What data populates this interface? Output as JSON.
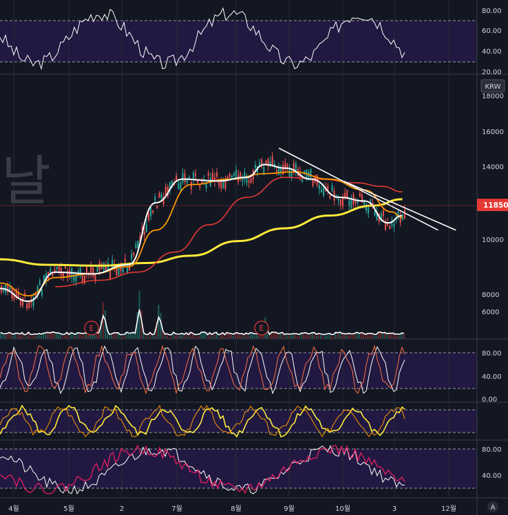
{
  "chart_data": {
    "type": "candlestick",
    "currency_label": "KRW",
    "watermark": "날",
    "last_price_label": "11850",
    "last_price": 11850,
    "x_ticks": [
      "4월",
      "5월",
      "2",
      "7월",
      "8월",
      "9월",
      "10월",
      "3",
      "12월"
    ],
    "main_ticks": [
      "18000",
      "16000",
      "14000",
      "12000",
      "10000",
      "8000",
      "6000"
    ],
    "rsi_ticks": [
      "80.00",
      "60.00",
      "40.00",
      "20.00"
    ],
    "stoch_ticks": [
      "80.00",
      "40.00",
      "0.00"
    ],
    "lower_ticks": [
      "80.00",
      "40.00"
    ],
    "event_marker": "E",
    "auto_scale_button": "A",
    "colors": {
      "background": "#131722",
      "up": "#26a69a",
      "down": "#ef5350",
      "band": "#2a1f4d",
      "ma_short": "#ffffff",
      "ma_mid": "#ff9800",
      "ma_long": "#e53935",
      "ma_xlong": "#ffeb3b",
      "last_price_badge": "#e53935"
    },
    "ma_xlong_points": [
      [
        "2023-03-25",
        8900
      ],
      [
        "2023-04-20",
        8600
      ],
      [
        "2023-05-20",
        8550
      ],
      [
        "2023-06-15",
        8700
      ],
      [
        "2023-07-10",
        9100
      ],
      [
        "2023-08-05",
        9900
      ],
      [
        "2023-08-31",
        10600
      ],
      [
        "2023-09-25",
        11300
      ],
      [
        "2023-10-20",
        11850
      ],
      [
        "2023-11-05",
        12200
      ]
    ],
    "ma_long_points": [
      [
        "2023-04-25",
        7400
      ],
      [
        "2023-05-20",
        7750
      ],
      [
        "2023-06-10",
        8200
      ],
      [
        "2023-07-01",
        9300
      ],
      [
        "2023-07-20",
        10800
      ],
      [
        "2023-08-10",
        12300
      ],
      [
        "2023-08-31",
        13400
      ],
      [
        "2023-09-20",
        13300
      ],
      [
        "2023-10-10",
        13100
      ],
      [
        "2023-10-25",
        12900
      ],
      [
        "2023-11-05",
        12600
      ]
    ],
    "ma_mid_points": [
      [
        "2023-03-25",
        7600
      ],
      [
        "2023-04-10",
        6900
      ],
      [
        "2023-04-25",
        7900
      ],
      [
        "2023-05-15",
        8100
      ],
      [
        "2023-06-05",
        8500
      ],
      [
        "2023-06-20",
        10500
      ],
      [
        "2023-07-10",
        13000
      ],
      [
        "2023-08-01",
        13300
      ],
      [
        "2023-08-20",
        13600
      ],
      [
        "2023-09-05",
        13700
      ],
      [
        "2023-09-25",
        13300
      ],
      [
        "2023-10-15",
        12700
      ],
      [
        "2023-10-30",
        11500
      ],
      [
        "2023-11-05",
        11200
      ]
    ],
    "ma_short_points": [
      [
        "2023-03-25",
        7300
      ],
      [
        "2023-04-10",
        6600
      ],
      [
        "2023-04-25",
        8200
      ],
      [
        "2023-05-15",
        8100
      ],
      [
        "2023-06-05",
        8600
      ],
      [
        "2023-06-20",
        12000
      ],
      [
        "2023-07-05",
        13300
      ],
      [
        "2023-07-25",
        13200
      ],
      [
        "2023-08-10",
        13400
      ],
      [
        "2023-08-20",
        14100
      ],
      [
        "2023-09-01",
        13900
      ],
      [
        "2023-09-15",
        13300
      ],
      [
        "2023-10-01",
        12300
      ],
      [
        "2023-10-15",
        12100
      ],
      [
        "2023-10-28",
        10900
      ],
      [
        "2023-11-05",
        11300
      ]
    ],
    "trendlines": [
      {
        "from": [
          "2023-08-28",
          15000
        ],
        "to": [
          "2023-11-25",
          10500
        ]
      },
      {
        "from": [
          "2023-10-03",
          13200
        ],
        "to": [
          "2023-12-05",
          10500
        ]
      }
    ],
    "volume_spikes": [
      {
        "date": "2023-05-22",
        "value": 60
      },
      {
        "date": "2023-06-11",
        "value": 70
      },
      {
        "date": "2023-06-22",
        "value": 55
      },
      {
        "date": "2023-08-20",
        "value": 35
      }
    ]
  },
  "ui": {
    "currency_badge": "KRW"
  }
}
